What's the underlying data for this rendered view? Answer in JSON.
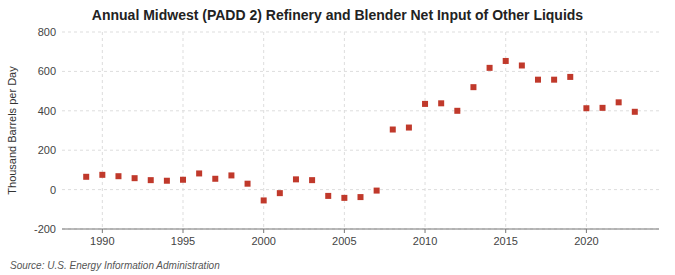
{
  "chart_data": {
    "type": "scatter",
    "title": "Annual Midwest (PADD 2) Refinery and Blender Net Input of Other Liquids",
    "ylabel": "Thousand Barrels per Day",
    "annotations": [
      "Source: U.S. Energy Information Administration"
    ],
    "x": [
      1989,
      1990,
      1991,
      1992,
      1993,
      1994,
      1995,
      1996,
      1997,
      1998,
      1999,
      2000,
      2001,
      2002,
      2003,
      2004,
      2005,
      2006,
      2007,
      2008,
      2009,
      2010,
      2011,
      2012,
      2013,
      2014,
      2015,
      2016,
      2017,
      2018,
      2019,
      2020,
      2021,
      2022,
      2023
    ],
    "values": [
      65,
      75,
      68,
      58,
      48,
      45,
      50,
      82,
      55,
      72,
      30,
      -55,
      -18,
      52,
      48,
      -32,
      -42,
      -38,
      -5,
      305,
      315,
      435,
      438,
      400,
      520,
      618,
      653,
      630,
      558,
      558,
      572,
      413,
      415,
      443,
      395
    ],
    "color": "#c0392b",
    "marker": "square",
    "xlim": [
      1987.5,
      2024.5
    ],
    "ylim": [
      -200,
      800
    ],
    "xticks": [
      1990,
      1995,
      2000,
      2005,
      2010,
      2015,
      2020
    ],
    "yticks": [
      -200,
      0,
      200,
      400,
      600,
      800
    ],
    "grid": true
  }
}
